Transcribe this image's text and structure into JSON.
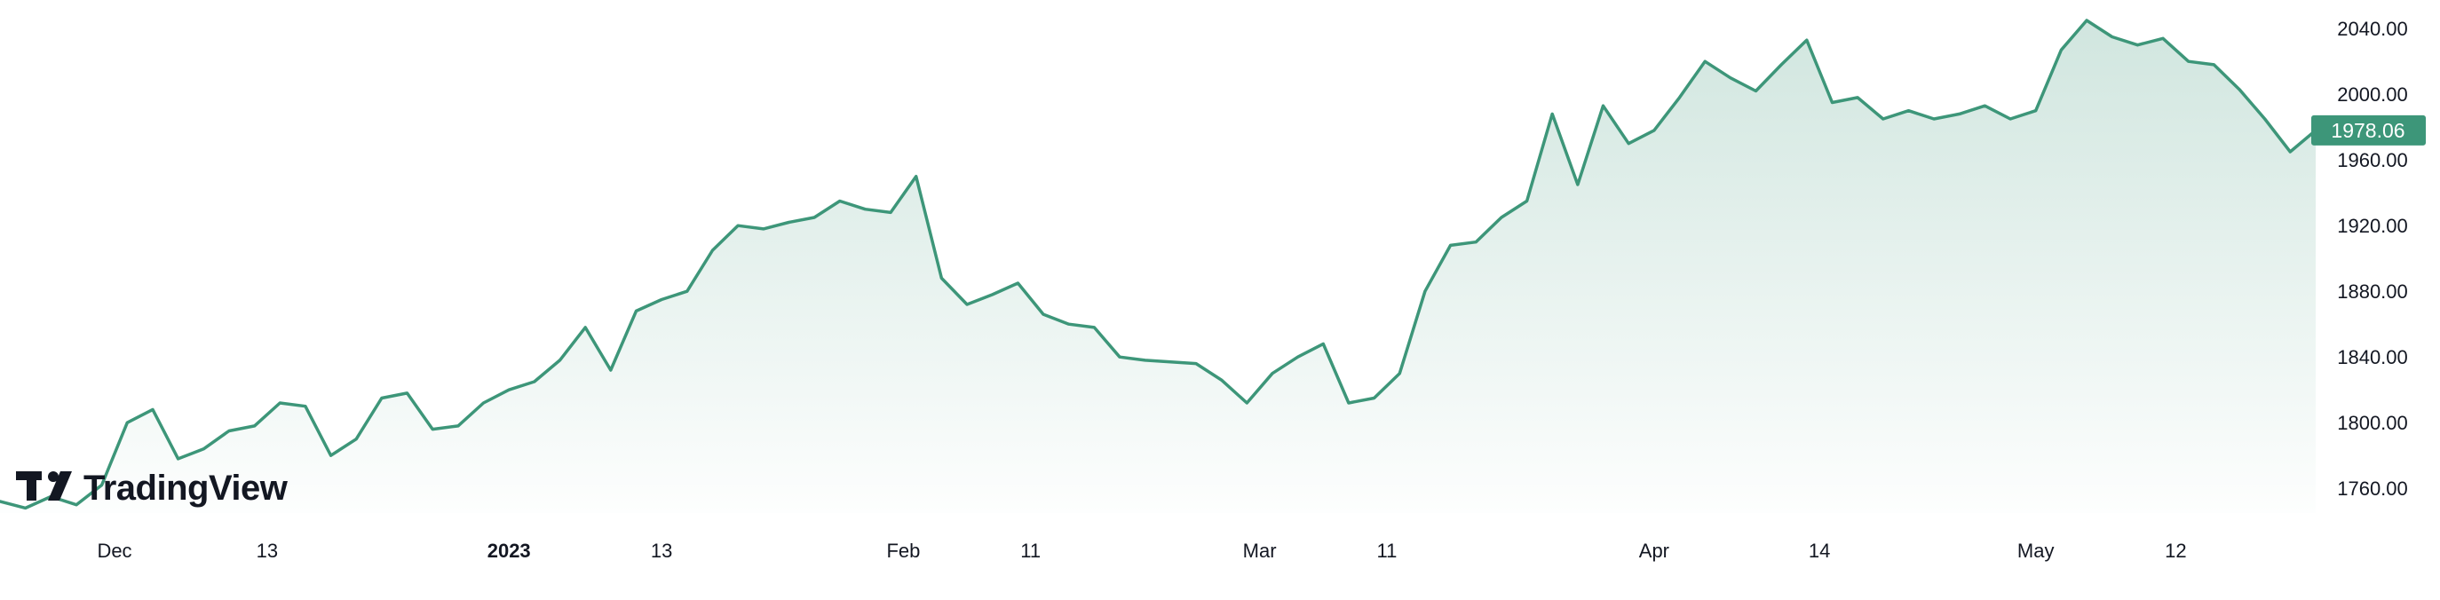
{
  "brand": {
    "name": "TradingView",
    "logo_icon": "tradingview-logo-icon"
  },
  "chart_data": {
    "type": "area",
    "title": "",
    "xlabel": "",
    "ylabel": "",
    "x_ticks": [
      "Dec",
      "13",
      "2023",
      "13",
      "Feb",
      "11",
      "Mar",
      "11",
      "Apr",
      "14",
      "May",
      "12"
    ],
    "x_tick_values": [
      "2022-12-01",
      "2022-12-13",
      "2023-01-01",
      "2023-01-13",
      "2023-02-01",
      "2023-02-11",
      "2023-03-01",
      "2023-03-11",
      "2023-04-01",
      "2023-04-14",
      "2023-05-01",
      "2023-05-12"
    ],
    "y_ticks": [
      "1760.00",
      "1800.00",
      "1840.00",
      "1880.00",
      "1920.00",
      "1960.00",
      "2000.00",
      "2040.00"
    ],
    "ylim": [
      1745,
      2052
    ],
    "xlim": [
      "2022-11-22",
      "2023-05-23"
    ],
    "grid": false,
    "last_value_label": "1978.06",
    "colors": {
      "line": "#3d9679",
      "fill": "#3d9679",
      "label_bg": "#3d9679",
      "text": "#131722"
    },
    "series": [
      {
        "x": [
          "2022-11-22",
          "2022-11-24",
          "2022-11-26",
          "2022-11-28",
          "2022-11-30",
          "2022-12-02",
          "2022-12-04",
          "2022-12-06",
          "2022-12-08",
          "2022-12-10",
          "2022-12-12",
          "2022-12-14",
          "2022-12-16",
          "2022-12-18",
          "2022-12-20",
          "2022-12-22",
          "2022-12-24",
          "2022-12-26",
          "2022-12-28",
          "2022-12-30",
          "2023-01-01",
          "2023-01-03",
          "2023-01-05",
          "2023-01-07",
          "2023-01-09",
          "2023-01-11",
          "2023-01-13",
          "2023-01-15",
          "2023-01-17",
          "2023-01-19",
          "2023-01-21",
          "2023-01-23",
          "2023-01-25",
          "2023-01-27",
          "2023-01-29",
          "2023-01-31",
          "2023-02-02",
          "2023-02-04",
          "2023-02-06",
          "2023-02-08",
          "2023-02-10",
          "2023-02-12",
          "2023-02-14",
          "2023-02-16",
          "2023-02-18",
          "2023-02-20",
          "2023-02-22",
          "2023-02-24",
          "2023-02-26",
          "2023-02-28",
          "2023-03-02",
          "2023-03-04",
          "2023-03-06",
          "2023-03-08",
          "2023-03-10",
          "2023-03-12",
          "2023-03-14",
          "2023-03-16",
          "2023-03-18",
          "2023-03-20",
          "2023-03-22",
          "2023-03-24",
          "2023-03-26",
          "2023-03-28",
          "2023-03-30",
          "2023-04-01",
          "2023-04-03",
          "2023-04-05",
          "2023-04-07",
          "2023-04-09",
          "2023-04-11",
          "2023-04-13",
          "2023-04-15",
          "2023-04-17",
          "2023-04-19",
          "2023-04-21",
          "2023-04-23",
          "2023-04-25",
          "2023-04-27",
          "2023-04-29",
          "2023-05-01",
          "2023-05-03",
          "2023-05-05",
          "2023-05-07",
          "2023-05-09",
          "2023-05-11",
          "2023-05-13",
          "2023-05-15",
          "2023-05-17",
          "2023-05-19",
          "2023-05-21",
          "2023-05-23"
        ],
        "values": [
          1752,
          1748,
          1755,
          1750,
          1762,
          1800,
          1808,
          1778,
          1784,
          1795,
          1798,
          1812,
          1810,
          1780,
          1790,
          1815,
          1818,
          1796,
          1798,
          1812,
          1820,
          1825,
          1838,
          1858,
          1832,
          1868,
          1875,
          1880,
          1905,
          1920,
          1918,
          1922,
          1925,
          1935,
          1930,
          1928,
          1950,
          1888,
          1872,
          1878,
          1885,
          1866,
          1860,
          1858,
          1840,
          1838,
          1837,
          1836,
          1826,
          1812,
          1830,
          1840,
          1848,
          1812,
          1815,
          1830,
          1880,
          1908,
          1910,
          1925,
          1935,
          1988,
          1945,
          1993,
          1970,
          1978,
          1998,
          2020,
          2010,
          2002,
          2018,
          2033,
          1995,
          1998,
          1985,
          1990,
          1985,
          1988,
          1993,
          1985,
          1990,
          2027,
          2045,
          2035,
          2030,
          2034,
          2020,
          2018,
          2003,
          1985,
          1965,
          1978
        ]
      }
    ]
  }
}
